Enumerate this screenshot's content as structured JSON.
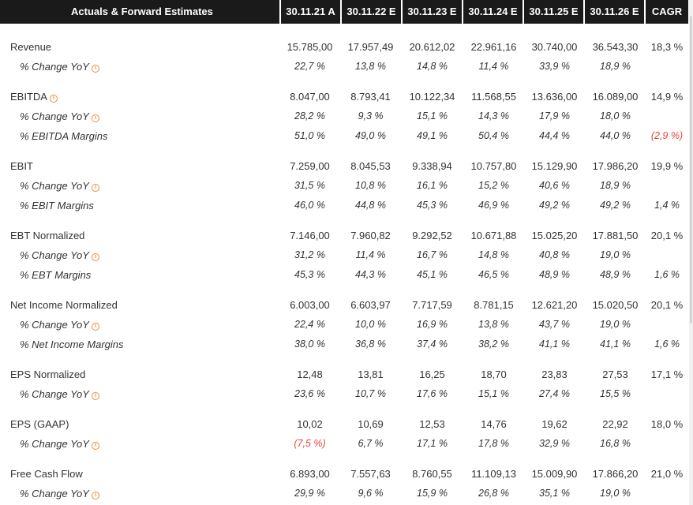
{
  "header": {
    "title": "Actuals & Forward Estimates",
    "columns": [
      "30.11.21 A",
      "30.11.22 E",
      "30.11.23 E",
      "30.11.24 E",
      "30.11.25 E",
      "30.11.26 E"
    ],
    "cagr": "CAGR"
  },
  "rows": [
    {
      "label": "Revenue",
      "values": [
        "15.785,00",
        "17.957,49",
        "20.612,02",
        "22.961,16",
        "30.740,00",
        "36.543,30"
      ],
      "cagr": "18,3 %"
    },
    {
      "label": "% Change YoY",
      "values": [
        "22,7 %",
        "13,8 %",
        "14,8 %",
        "11,4 %",
        "33,9 %",
        "18,9 %"
      ],
      "cagr": ""
    },
    {
      "label": "EBITDA",
      "values": [
        "8.047,00",
        "8.793,41",
        "10.122,34",
        "11.568,55",
        "13.636,00",
        "16.089,00"
      ],
      "cagr": "14,9 %"
    },
    {
      "label": "% Change YoY",
      "values": [
        "28,2 %",
        "9,3 %",
        "15,1 %",
        "14,3 %",
        "17,9 %",
        "18,0 %"
      ],
      "cagr": ""
    },
    {
      "label": "% EBITDA Margins",
      "values": [
        "51,0 %",
        "49,0 %",
        "49,1 %",
        "50,4 %",
        "44,4 %",
        "44,0 %"
      ],
      "cagr": "(2,9 %)"
    },
    {
      "label": "EBIT",
      "values": [
        "7.259,00",
        "8.045,53",
        "9.338,94",
        "10.757,80",
        "15.129,90",
        "17.986,20"
      ],
      "cagr": "19,9 %"
    },
    {
      "label": "% Change YoY",
      "values": [
        "31,5 %",
        "10,8 %",
        "16,1 %",
        "15,2 %",
        "40,6 %",
        "18,9 %"
      ],
      "cagr": ""
    },
    {
      "label": "% EBIT Margins",
      "values": [
        "46,0 %",
        "44,8 %",
        "45,3 %",
        "46,9 %",
        "49,2 %",
        "49,2 %"
      ],
      "cagr": "1,4 %"
    },
    {
      "label": "EBT Normalized",
      "values": [
        "7.146,00",
        "7.960,82",
        "9.292,52",
        "10.671,88",
        "15.025,20",
        "17.881,50"
      ],
      "cagr": "20,1 %"
    },
    {
      "label": "% Change YoY",
      "values": [
        "31,2 %",
        "11,4 %",
        "16,7 %",
        "14,8 %",
        "40,8 %",
        "19,0 %"
      ],
      "cagr": ""
    },
    {
      "label": "% EBT Margins",
      "values": [
        "45,3 %",
        "44,3 %",
        "45,1 %",
        "46,5 %",
        "48,9 %",
        "48,9 %"
      ],
      "cagr": "1,6 %"
    },
    {
      "label": "Net Income Normalized",
      "values": [
        "6.003,00",
        "6.603,97",
        "7.717,59",
        "8.781,15",
        "12.621,20",
        "15.020,50"
      ],
      "cagr": "20,1 %"
    },
    {
      "label": "% Change YoY",
      "values": [
        "22,4 %",
        "10,0 %",
        "16,9 %",
        "13,8 %",
        "43,7 %",
        "19,0 %"
      ],
      "cagr": ""
    },
    {
      "label": "% Net Income Margins",
      "values": [
        "38,0 %",
        "36,8 %",
        "37,4 %",
        "38,2 %",
        "41,1 %",
        "41,1 %"
      ],
      "cagr": "1,6 %"
    },
    {
      "label": "EPS Normalized",
      "values": [
        "12,48",
        "13,81",
        "16,25",
        "18,70",
        "23,83",
        "27,53"
      ],
      "cagr": "17,1 %"
    },
    {
      "label": "% Change YoY",
      "values": [
        "23,6 %",
        "10,7 %",
        "17,6 %",
        "15,1 %",
        "27,4 %",
        "15,5 %"
      ],
      "cagr": ""
    },
    {
      "label": "EPS (GAAP)",
      "values": [
        "10,02",
        "10,69",
        "12,53",
        "14,76",
        "19,62",
        "22,92"
      ],
      "cagr": "18,0 %"
    },
    {
      "label": "% Change YoY",
      "values": [
        "(7,5 %)",
        "6,7 %",
        "17,1 %",
        "17,8 %",
        "32,9 %",
        "16,8 %"
      ],
      "cagr": ""
    },
    {
      "label": "Free Cash Flow",
      "values": [
        "6.893,00",
        "7.557,63",
        "8.760,55",
        "11.109,13",
        "15.009,90",
        "17.866,20"
      ],
      "cagr": "21,0 %"
    },
    {
      "label": "% Change YoY",
      "values": [
        "29,9 %",
        "9,6 %",
        "15,9 %",
        "26,8 %",
        "35,1 %",
        "19,0 %"
      ],
      "cagr": ""
    }
  ],
  "colors": {
    "negative": "#e8453c",
    "info_icon": "#f08c30",
    "header_bg": "#1a1a1a"
  },
  "icons": {
    "info": "info-icon"
  }
}
